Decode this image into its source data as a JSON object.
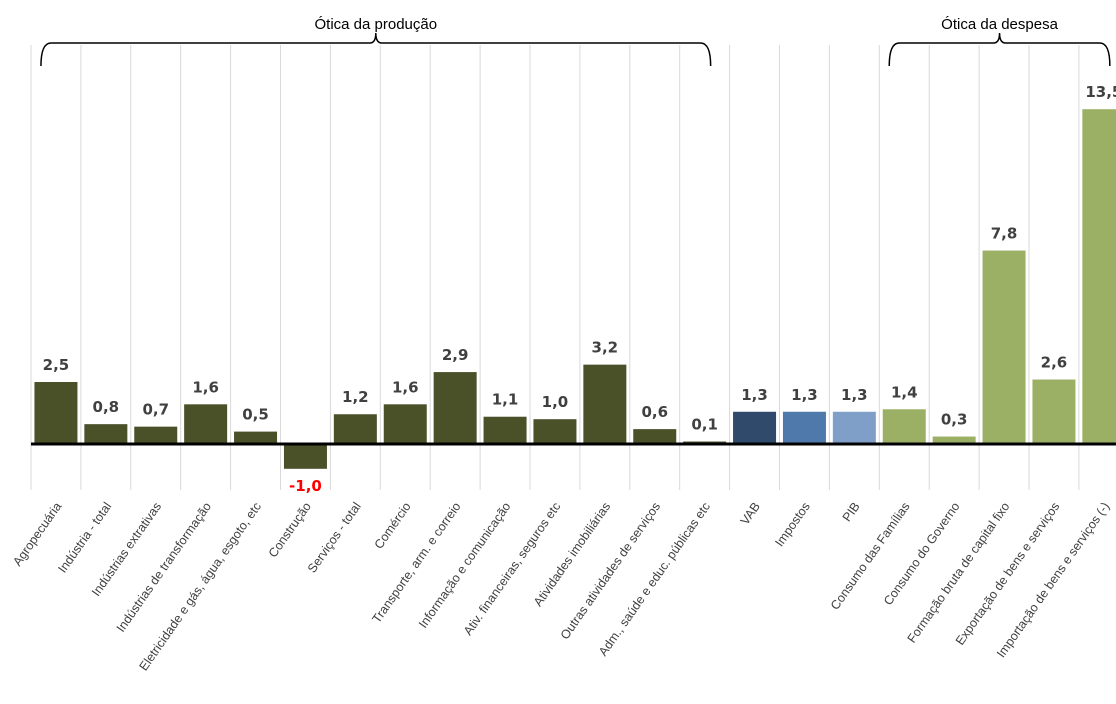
{
  "chart_data": {
    "type": "bar",
    "categories": [
      "Agropecuária",
      "Indústria - total",
      "Indústrias extrativas",
      "Indústrias de transformação",
      "Eletricidade e gás, água, esgoto, etc",
      "Construção",
      "Serviços - total",
      "Comércio",
      "Transporte, arm. e correio",
      "Informação e comunicação",
      "Ativ. financeiras, seguros etc",
      "Atividades imobiliárias",
      "Outras atividades de serviços",
      "Adm., saúde e educ. públicas etc",
      "VAB",
      "Impostos",
      "PIB",
      "Consumo das Famílias",
      "Consumo do Governo",
      "Formação bruta de capital fixo",
      "Exportação de bens e serviços",
      "Importação de bens e serviços (-)"
    ],
    "values": [
      2.5,
      0.8,
      0.7,
      1.6,
      0.5,
      -1.0,
      1.2,
      1.6,
      2.9,
      1.1,
      1.0,
      3.2,
      0.6,
      0.1,
      1.3,
      1.3,
      1.3,
      1.4,
      0.3,
      7.8,
      2.6,
      13.5
    ],
    "value_labels": [
      "2,5",
      "0,8",
      "0,7",
      "1,6",
      "0,5",
      "-1,0",
      "1,2",
      "1,6",
      "2,9",
      "1,1",
      "1,0",
      "3,2",
      "0,6",
      "0,1",
      "1,3",
      "1,3",
      "1,3",
      "1,4",
      "0,3",
      "7,8",
      "2,6",
      "13,5"
    ],
    "bar_colors": [
      "#4a5129",
      "#4a5129",
      "#4a5129",
      "#4a5129",
      "#4a5129",
      "#4a5129",
      "#4a5129",
      "#4a5129",
      "#4a5129",
      "#4a5129",
      "#4a5129",
      "#4a5129",
      "#4a5129",
      "#4a5129",
      "#2f4a6a",
      "#4f78ab",
      "#7f9fc8",
      "#9bb064",
      "#9bb064",
      "#9bb064",
      "#9bb064",
      "#9bb064"
    ],
    "label_colors": {
      "positive": "#404040",
      "negative": "#ff0000"
    },
    "groups": [
      {
        "label": "Ótica da produção",
        "from": 0,
        "to": 13
      },
      {
        "label": "Ótica da despesa",
        "from": 17,
        "to": 21
      }
    ],
    "ylim": [
      -2.0,
      13.5
    ],
    "grid": "vertical",
    "title": "",
    "xlabel": "",
    "ylabel": ""
  }
}
